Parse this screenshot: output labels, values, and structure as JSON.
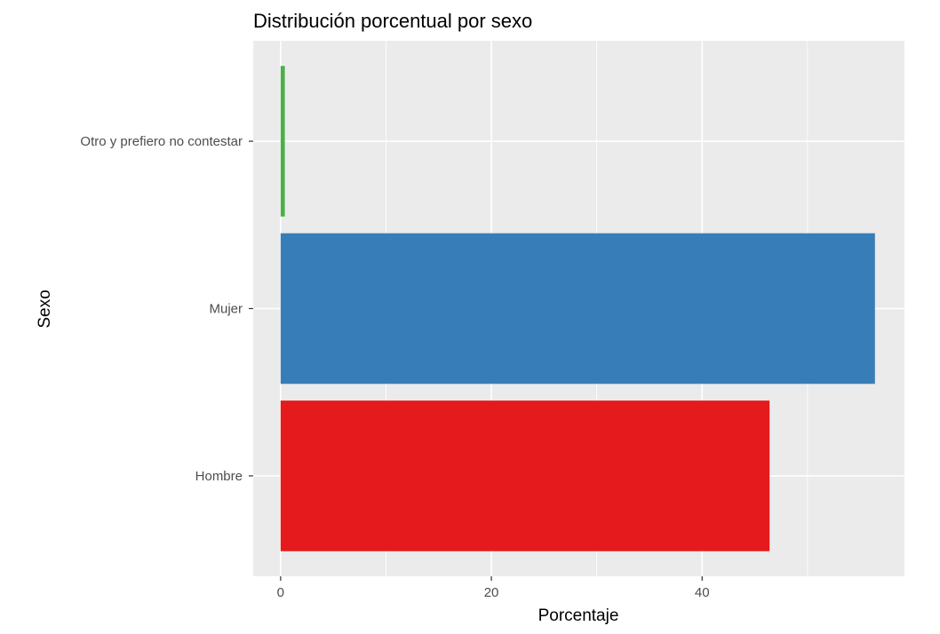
{
  "chart_data": {
    "type": "bar",
    "orientation": "horizontal",
    "title": "Distribución porcentual por sexo",
    "xlabel": "Porcentaje",
    "ylabel": "Sexo",
    "categories": [
      "Hombre",
      "Mujer",
      "Otro y prefiero no contestar"
    ],
    "values": [
      46.4,
      56.4,
      0.4
    ],
    "colors": [
      "#e41a1c",
      "#377eb8",
      "#4daf4a"
    ],
    "xlim": [
      -2.6,
      59.2
    ],
    "xticks": [
      0,
      20,
      40
    ],
    "xtick_labels": [
      "0",
      "20",
      "40"
    ],
    "grid": true,
    "legend": "none",
    "panel_background": "#ebebeb",
    "grid_color": "#ffffff"
  }
}
